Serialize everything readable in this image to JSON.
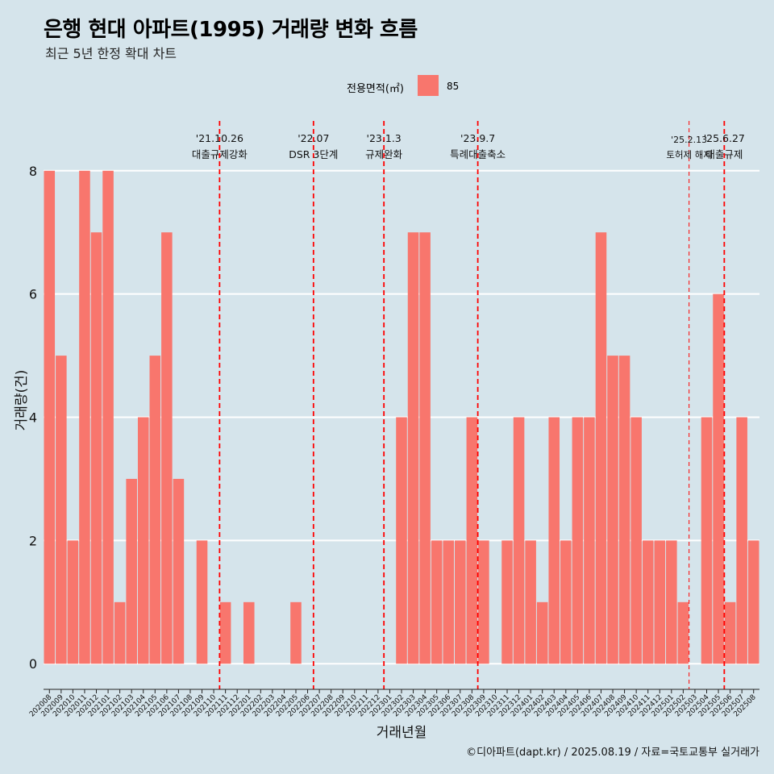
{
  "header": {
    "title": "은행 현대 아파트(1995) 거래량 변화 흐름",
    "subtitle": "최근 5년 한정 확대 차트"
  },
  "legend": {
    "title": "전용면적(㎡)",
    "items": [
      {
        "label": "85",
        "color": "#f8766d"
      }
    ]
  },
  "caption": "©디아파트(dapt.kr) / 2025.08.19 / 자료=국토교통부 실거래가",
  "colors": {
    "background": "#d5e4eb",
    "bar": "#f8766d",
    "event_line": "#ff0000",
    "grid": "#ffffff"
  },
  "chart_data": {
    "type": "bar",
    "xlabel": "거래년월",
    "ylabel": "거래량(건)",
    "ylim": [
      -0.35,
      8.9
    ],
    "yticks": [
      0,
      2,
      4,
      6,
      8
    ],
    "grid": true,
    "legend_position": "top",
    "categories": [
      "202008",
      "202009",
      "202010",
      "202011",
      "202012",
      "202101",
      "202102",
      "202103",
      "202104",
      "202105",
      "202106",
      "202107",
      "202108",
      "202109",
      "202110",
      "202111",
      "202112",
      "202201",
      "202202",
      "202203",
      "202204",
      "202205",
      "202206",
      "202207",
      "202208",
      "202209",
      "202210",
      "202211",
      "202212",
      "202301",
      "202302",
      "202303",
      "202304",
      "202305",
      "202306",
      "202307",
      "202308",
      "202309",
      "202310",
      "202311",
      "202312",
      "202401",
      "202402",
      "202403",
      "202404",
      "202405",
      "202406",
      "202407",
      "202408",
      "202409",
      "202410",
      "202411",
      "202412",
      "202501",
      "202502",
      "202503",
      "202504",
      "202505",
      "202506",
      "202507",
      "202508"
    ],
    "series": [
      {
        "name": "85",
        "values": [
          8,
          5,
          2,
          8,
          7,
          8,
          1,
          3,
          4,
          5,
          7,
          3,
          0,
          2,
          0,
          1,
          0,
          1,
          0,
          0,
          0,
          1,
          0,
          0,
          0,
          0,
          0,
          0,
          0,
          0,
          4,
          7,
          7,
          2,
          2,
          2,
          4,
          2,
          0,
          2,
          4,
          2,
          1,
          4,
          2,
          4,
          4,
          7,
          5,
          5,
          4,
          2,
          2,
          2,
          1,
          0,
          4,
          6,
          1,
          4,
          2
        ]
      }
    ],
    "events": [
      {
        "date": "'21.10.26",
        "label": "대출규제강화",
        "after": "202110",
        "style": "dashed-bold"
      },
      {
        "date": "'22.07",
        "label": "DSR 3단계",
        "after": "202206",
        "style": "dashed-bold"
      },
      {
        "date": "'23.1.3",
        "label": "규제완화",
        "after": "202212",
        "style": "dashed-bold"
      },
      {
        "date": "'23.9.7",
        "label": "특례대출축소",
        "after": "202308",
        "style": "dashed-bold"
      },
      {
        "date": "'25.2.13",
        "label": "토허제 해제",
        "after": "202502",
        "style": "dashed-thin"
      },
      {
        "date": "'25.6.27",
        "label": "대출규제",
        "after": "202505",
        "style": "dashed-bold"
      }
    ]
  }
}
